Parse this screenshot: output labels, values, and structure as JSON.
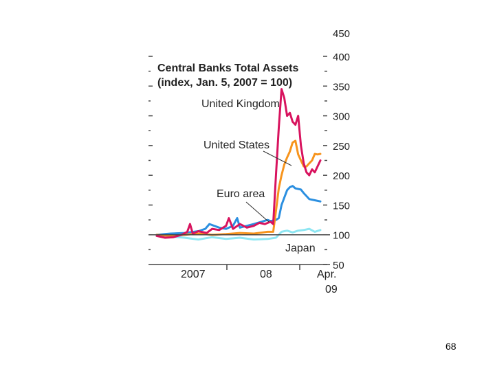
{
  "page": {
    "number": "68"
  },
  "chart_data": {
    "type": "line",
    "title": "Central Banks Total Assets",
    "subtitle": "(index, Jan. 5, 2007 = 100)",
    "x_unit": "weeks since Jan. 5, 2007",
    "xlim": [
      0,
      120
    ],
    "ylim": [
      50,
      410
    ],
    "yticks": [
      50,
      100,
      150,
      200,
      250,
      300,
      350,
      400
    ],
    "ytick_labels": [
      "50",
      "100",
      "150",
      "200",
      "250",
      "300",
      "350",
      "400"
    ],
    "x_tick_labels": [
      "2007",
      "08",
      "Apr.",
      "09"
    ],
    "top_partial_label": "450",
    "reference_line": 100,
    "colors": {
      "United Kingdom": "#d8135e",
      "United States": "#f7941d",
      "Euro area": "#2b8fe0",
      "Japan": "#8ee6f2",
      "axis": "#444444"
    },
    "series": [
      {
        "name": "Japan",
        "x": [
          0,
          10,
          20,
          30,
          40,
          50,
          60,
          70,
          80,
          86,
          90,
          94,
          98,
          102,
          106,
          110,
          114,
          118
        ],
        "values": [
          100,
          97,
          95,
          92,
          96,
          93,
          95,
          92,
          93,
          95,
          105,
          107,
          104,
          107,
          108,
          110,
          105,
          108
        ]
      },
      {
        "name": "Euro area",
        "x": [
          0,
          10,
          20,
          30,
          35,
          38,
          45,
          50,
          55,
          58,
          60,
          70,
          80,
          82,
          86,
          88,
          90,
          94,
          96,
          98,
          100,
          104,
          106,
          108,
          110,
          114,
          118
        ],
        "values": [
          100,
          102,
          103,
          106,
          110,
          118,
          112,
          110,
          115,
          128,
          112,
          118,
          125,
          123,
          125,
          128,
          150,
          175,
          180,
          182,
          178,
          176,
          170,
          165,
          160,
          158,
          156
        ]
      },
      {
        "name": "United States",
        "x": [
          0,
          10,
          20,
          30,
          40,
          50,
          60,
          70,
          80,
          84,
          86,
          88,
          90,
          92,
          94,
          96,
          98,
          100,
          102,
          104,
          106,
          108,
          110,
          112,
          114,
          116,
          118
        ],
        "values": [
          100,
          98,
          100,
          102,
          100,
          101,
          103,
          102,
          105,
          105,
          140,
          178,
          200,
          218,
          230,
          240,
          255,
          258,
          235,
          225,
          215,
          215,
          220,
          225,
          236,
          235,
          236
        ]
      },
      {
        "name": "United Kingdom",
        "x": [
          0,
          6,
          12,
          18,
          22,
          24,
          26,
          30,
          36,
          40,
          45,
          50,
          52,
          55,
          60,
          65,
          70,
          74,
          78,
          82,
          84,
          86,
          88,
          90,
          92,
          94,
          96,
          98,
          100,
          102,
          104,
          106,
          108,
          110,
          112,
          114,
          116,
          118
        ],
        "values": [
          98,
          95,
          96,
          100,
          105,
          118,
          102,
          106,
          103,
          110,
          108,
          115,
          128,
          110,
          118,
          112,
          115,
          120,
          118,
          122,
          118,
          200,
          280,
          345,
          330,
          300,
          305,
          290,
          285,
          300,
          250,
          220,
          205,
          200,
          210,
          205,
          215,
          225
        ]
      }
    ],
    "annotations": [
      {
        "text": "United Kingdom",
        "points_to": "United Kingdom"
      },
      {
        "text": "United States",
        "points_to": "United States"
      },
      {
        "text": "Euro area",
        "points_to": "Euro area"
      },
      {
        "text": "Japan",
        "points_to": "Japan"
      }
    ],
    "grid": false,
    "legend": "none (inline labels)"
  }
}
